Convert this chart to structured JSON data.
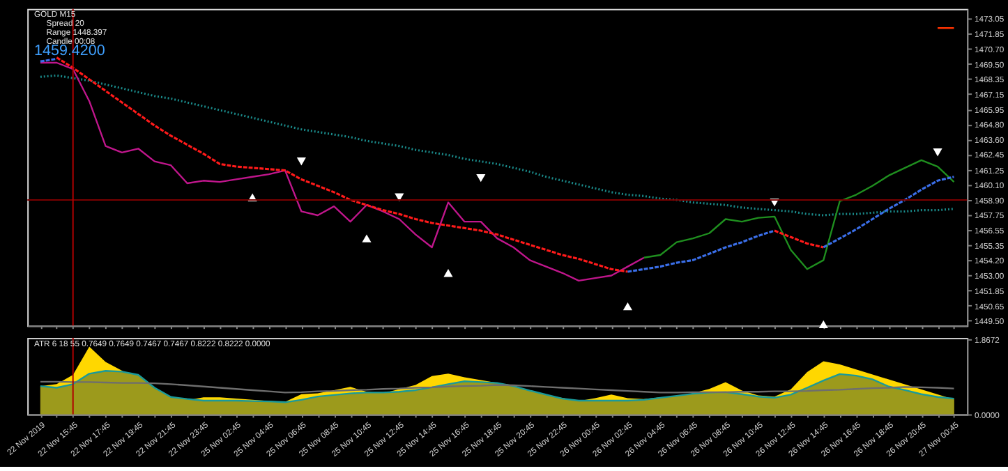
{
  "chart_data": [
    {
      "type": "line",
      "tick_labels": "y",
      "grid": false,
      "categories": [
        "22 Nov 2019",
        null,
        "22 Nov 15:45",
        null,
        "22 Nov 17:45",
        null,
        "22 Nov 19:45",
        null,
        "22 Nov 21:45",
        null,
        "22 Nov 23:45",
        null,
        "25 Nov 02:45",
        null,
        "25 Nov 04:45",
        null,
        "25 Nov 06:45",
        null,
        "25 Nov 08:45",
        null,
        "25 Nov 10:45",
        null,
        "25 Nov 12:45",
        null,
        "25 Nov 14:45",
        null,
        "25 Nov 16:45",
        null,
        "25 Nov 18:45",
        null,
        "25 Nov 20:45",
        null,
        "25 Nov 22:45",
        null,
        "26 Nov 00:45",
        null,
        "26 Nov 02:45",
        null,
        "26 Nov 04:45",
        null,
        "26 Nov 06:45",
        null,
        "26 Nov 08:45",
        null,
        "26 Nov 10:45",
        null,
        "26 Nov 12:45",
        null,
        "26 Nov 14:45",
        null,
        "26 Nov 16:45",
        null,
        "26 Nov 18:45",
        null,
        "26 Nov 20:45",
        null,
        "27 Nov 00:45"
      ],
      "ylim": [
        1449.1,
        1473.8
      ],
      "yticks": [
        {
          "value": 1449.5,
          "label": "1449.50"
        },
        {
          "value": 1450.65,
          "label": "1450.65"
        },
        {
          "value": 1451.85,
          "label": "1451.85"
        },
        {
          "value": 1453.0,
          "label": "1453.00"
        },
        {
          "value": 1454.2,
          "label": "1454.20"
        },
        {
          "value": 1455.35,
          "label": "1455.35"
        },
        {
          "value": 1456.55,
          "label": "1456.55"
        },
        {
          "value": 1457.75,
          "label": "1457.75"
        },
        {
          "value": 1458.9,
          "label": "1458.90"
        },
        {
          "value": 1460.1,
          "label": "1460.10"
        },
        {
          "value": 1461.25,
          "label": "1461.25"
        },
        {
          "value": 1462.45,
          "label": "1462.45"
        },
        {
          "value": 1463.6,
          "label": "1463.60"
        },
        {
          "value": 1464.8,
          "label": "1464.80"
        },
        {
          "value": 1465.95,
          "label": "1465.95"
        },
        {
          "value": 1467.15,
          "label": "1467.15"
        },
        {
          "value": 1468.35,
          "label": "1468.35"
        },
        {
          "value": 1469.5,
          "label": "1469.50"
        },
        {
          "value": 1470.7,
          "label": "1470.70"
        },
        {
          "value": 1471.85,
          "label": "1471.85"
        },
        {
          "value": 1473.05,
          "label": "1473.05"
        }
      ],
      "series": [
        {
          "color": "#1a8a8a",
          "line_style": "dotted",
          "values": [
            1468.5,
            1468.6,
            1468.4,
            1468.2,
            1467.9,
            1467.6,
            1467.3,
            1467.0,
            1466.8,
            1466.5,
            1466.2,
            1465.9,
            1465.6,
            1465.3,
            1465.0,
            1464.7,
            1464.4,
            1464.2,
            1464.0,
            1463.8,
            1463.5,
            1463.3,
            1463.1,
            1462.8,
            1462.6,
            1462.4,
            1462.1,
            1461.9,
            1461.7,
            1461.4,
            1461.1,
            1460.7,
            1460.4,
            1460.1,
            1459.8,
            1459.5,
            1459.3,
            1459.2,
            1459.0,
            1458.9,
            1458.7,
            1458.6,
            1458.5,
            1458.3,
            1458.2,
            1458.1,
            1458.0,
            1457.8,
            1457.7,
            1457.8,
            1457.8,
            1457.9,
            1458.0,
            1458.0,
            1458.1,
            1458.1,
            1458.2
          ]
        },
        {
          "color": "#c0168c",
          "values": [
            1469.6,
            1469.6,
            1469.1,
            1466.6,
            1463.1,
            1462.6,
            1462.9,
            1461.9,
            1461.6,
            1460.2,
            1460.4,
            1460.3,
            1460.5,
            1460.7,
            1460.9,
            1461.2,
            1458.0,
            1457.7,
            1458.4,
            1457.2,
            1458.5,
            1458.0,
            1457.4,
            1456.2,
            1455.2,
            1458.7,
            1457.2,
            1457.2,
            1455.9,
            1455.2,
            1454.2,
            1453.7,
            1453.2,
            1452.6,
            1452.8,
            1453.0,
            1453.7,
            1454.4,
            null,
            null,
            null,
            null,
            null,
            null,
            null,
            null,
            null,
            null,
            null,
            null,
            null,
            null,
            null,
            null,
            null,
            null,
            null
          ]
        },
        {
          "color": "#1f8f1f",
          "values": [
            null,
            null,
            null,
            null,
            null,
            null,
            null,
            null,
            null,
            null,
            null,
            null,
            null,
            null,
            null,
            null,
            null,
            null,
            null,
            null,
            null,
            null,
            null,
            null,
            null,
            null,
            null,
            null,
            null,
            null,
            null,
            null,
            null,
            null,
            null,
            null,
            null,
            1454.4,
            1454.6,
            1455.6,
            1455.9,
            1456.3,
            1457.4,
            1457.2,
            1457.5,
            1457.6,
            1455.0,
            1453.5,
            1454.2,
            1458.8,
            1459.3,
            1460.0,
            1460.8,
            1461.4,
            1462.0,
            1461.5,
            1460.3
          ]
        },
        {
          "color": "#3a6ee8",
          "line_style": "dashed",
          "values": [
            1469.7,
            1469.9,
            null,
            null,
            null,
            null,
            null,
            null,
            null,
            null,
            null,
            null,
            null,
            null,
            null,
            null,
            null,
            null,
            null,
            null,
            null,
            null,
            null,
            null,
            null,
            null,
            null,
            null,
            null,
            null,
            null,
            null,
            null,
            null,
            null,
            null,
            null,
            null,
            null,
            null,
            null,
            null,
            null,
            null,
            null,
            null,
            null,
            null,
            null,
            null,
            null,
            null,
            null,
            null,
            null,
            null,
            null
          ]
        },
        {
          "color": "#ff1a1a",
          "line_style": "dashed",
          "values": [
            null,
            1470.0,
            1469.2,
            1468.3,
            1467.4,
            1466.5,
            1465.6,
            1464.7,
            1463.9,
            1463.2,
            1462.5,
            1461.7,
            1461.5,
            1461.4,
            1461.3,
            1461.2,
            1460.5,
            1460.0,
            1459.5,
            1458.9,
            1458.5,
            1458.1,
            1457.8,
            1457.4,
            1457.1,
            1456.9,
            1456.7,
            1456.5,
            1456.2,
            1455.8,
            1455.4,
            1455.0,
            1454.6,
            1454.3,
            1453.9,
            1453.5,
            1453.3,
            null,
            null,
            null,
            null,
            null,
            null,
            null,
            null,
            null,
            null,
            null,
            null,
            null,
            null,
            null,
            null,
            null,
            null,
            null,
            null
          ]
        },
        {
          "color": "#3a6ee8",
          "line_style": "dashed",
          "values": [
            null,
            null,
            null,
            null,
            null,
            null,
            null,
            null,
            null,
            null,
            null,
            null,
            null,
            null,
            null,
            null,
            null,
            null,
            null,
            null,
            null,
            null,
            null,
            null,
            null,
            null,
            null,
            null,
            null,
            null,
            null,
            null,
            null,
            null,
            null,
            null,
            1453.3,
            1453.5,
            1453.7,
            1454.0,
            1454.2,
            1454.7,
            1455.2,
            1455.6,
            1456.1,
            1456.5,
            null,
            null,
            null,
            null,
            null,
            null,
            null,
            null,
            null,
            null,
            null
          ]
        },
        {
          "color": "#ff1a1a",
          "line_style": "dashed",
          "values": [
            null,
            null,
            null,
            null,
            null,
            null,
            null,
            null,
            null,
            null,
            null,
            null,
            null,
            null,
            null,
            null,
            null,
            null,
            null,
            null,
            null,
            null,
            null,
            null,
            null,
            null,
            null,
            null,
            null,
            null,
            null,
            null,
            null,
            null,
            null,
            null,
            null,
            null,
            null,
            null,
            null,
            null,
            null,
            null,
            null,
            1456.5,
            1456.0,
            1455.5,
            1455.2,
            null,
            null,
            null,
            null,
            null,
            null,
            null,
            null
          ]
        },
        {
          "color": "#3a6ee8",
          "line_style": "dashed",
          "values": [
            null,
            null,
            null,
            null,
            null,
            null,
            null,
            null,
            null,
            null,
            null,
            null,
            null,
            null,
            null,
            null,
            null,
            null,
            null,
            null,
            null,
            null,
            null,
            null,
            null,
            null,
            null,
            null,
            null,
            null,
            null,
            null,
            null,
            null,
            null,
            null,
            null,
            null,
            null,
            null,
            null,
            null,
            null,
            null,
            null,
            null,
            null,
            null,
            1455.2,
            1455.9,
            1456.6,
            1457.4,
            1458.2,
            1458.9,
            1459.7,
            1460.4,
            1460.7
          ]
        },
        {
          "color": "#ff3300",
          "values": [
            null,
            null,
            null,
            null,
            null,
            null,
            null,
            null,
            null,
            null,
            null,
            null,
            null,
            null,
            null,
            null,
            null,
            null,
            null,
            null,
            null,
            null,
            null,
            null,
            null,
            null,
            null,
            null,
            null,
            null,
            null,
            null,
            null,
            null,
            null,
            null,
            null,
            null,
            null,
            null,
            null,
            null,
            null,
            null,
            null,
            null,
            null,
            null,
            null,
            null,
            null,
            null,
            null,
            null,
            null,
            1472.3,
            1472.3
          ]
        },
        {
          "type": "scatter",
          "marker": "triangle",
          "color": "#ffffff",
          "values": [
            null,
            null,
            null,
            null,
            null,
            null,
            null,
            null,
            null,
            null,
            null,
            null,
            null,
            1459.1,
            null,
            null,
            null,
            null,
            null,
            null,
            1455.9,
            null,
            null,
            null,
            null,
            1453.2,
            null,
            null,
            null,
            null,
            null,
            null,
            null,
            null,
            null,
            null,
            1450.6,
            null,
            null,
            null,
            null,
            null,
            null,
            null,
            null,
            null,
            null,
            null,
            1449.2,
            null,
            null,
            null,
            null,
            null,
            null,
            null,
            null
          ]
        },
        {
          "type": "scatter",
          "marker": "triangle",
          "color": "#ffffff",
          "values": [
            null,
            null,
            null,
            null,
            null,
            null,
            null,
            null,
            null,
            null,
            null,
            null,
            null,
            null,
            null,
            null,
            1461.9,
            null,
            null,
            null,
            null,
            null,
            1459.1,
            null,
            null,
            null,
            null,
            1460.6,
            null,
            null,
            null,
            null,
            null,
            null,
            null,
            null,
            null,
            null,
            null,
            null,
            null,
            null,
            null,
            null,
            null,
            1458.7,
            null,
            null,
            null,
            null,
            null,
            null,
            null,
            null,
            null,
            1462.6,
            null
          ]
        }
      ],
      "ref_lines": [
        {
          "axis": "y",
          "value": 1458.9,
          "color": "#7a0000"
        },
        {
          "axis": "x",
          "value": "22 Nov 15:45",
          "color": "#b00000"
        }
      ],
      "annotations": [
        "GOLD   M15",
        "Spread   20",
        "Range   1448.397",
        "Candle   00:08",
        "1459.4200"
      ]
    },
    {
      "type": "area",
      "grid": false,
      "categories": [
        "22 Nov 2019",
        null,
        "22 Nov 15:45",
        null,
        "22 Nov 17:45",
        null,
        "22 Nov 19:45",
        null,
        "22 Nov 21:45",
        null,
        "22 Nov 23:45",
        null,
        "25 Nov 02:45",
        null,
        "25 Nov 04:45",
        null,
        "25 Nov 06:45",
        null,
        "25 Nov 08:45",
        null,
        "25 Nov 10:45",
        null,
        "25 Nov 12:45",
        null,
        "25 Nov 14:45",
        null,
        "25 Nov 16:45",
        null,
        "25 Nov 18:45",
        null,
        "25 Nov 20:45",
        null,
        "25 Nov 22:45",
        null,
        "26 Nov 00:45",
        null,
        "26 Nov 02:45",
        null,
        "26 Nov 04:45",
        null,
        "26 Nov 06:45",
        null,
        "26 Nov 08:45",
        null,
        "26 Nov 10:45",
        null,
        "26 Nov 12:45",
        null,
        "26 Nov 14:45",
        null,
        "26 Nov 16:45",
        null,
        "26 Nov 18:45",
        null,
        "26 Nov 20:45",
        null,
        "27 Nov 00:45"
      ],
      "ylim": [
        0,
        1.9
      ],
      "yticks": [
        {
          "value": 1.8672,
          "label": "1.8672"
        },
        {
          "value": 0,
          "label": "0.0000"
        }
      ],
      "series": [
        {
          "color": "#ffd700",
          "values": [
            0.7,
            0.75,
            0.98,
            1.68,
            1.3,
            null,
            null,
            null,
            0.44,
            0.35,
            0.42,
            0.42,
            0.39,
            0.36,
            0.33,
            0.31,
            0.5,
            0.52,
            0.6,
            0.68,
            0.56,
            0.52,
            null,
            0.73,
            0.95,
            1.01,
            0.92,
            null,
            0.78,
            0.72,
            0.56,
            null,
            null,
            0.33,
            0.4,
            0.49,
            0.4,
            0.38,
            0.42,
            0.42,
            null,
            0.63,
            0.8,
            0.59,
            0.47,
            0.44,
            0.62,
            1.05,
            1.32,
            1.24,
            null,
            null,
            null,
            null,
            null,
            null,
            0.37
          ]
        },
        {
          "color": "#9c9a1c",
          "values": [
            0.7,
            0.66,
            0.75,
            1.01,
            1.08,
            1.06,
            0.98,
            0.66,
            0.43,
            0.38,
            0.34,
            0.34,
            0.34,
            0.33,
            0.32,
            0.3,
            0.36,
            0.44,
            0.48,
            0.52,
            0.54,
            0.54,
            0.56,
            0.6,
            0.67,
            0.75,
            0.82,
            0.8,
            0.78,
            0.7,
            0.59,
            0.49,
            0.39,
            0.34,
            0.34,
            0.34,
            0.34,
            0.36,
            0.41,
            0.46,
            0.51,
            0.54,
            0.55,
            0.5,
            0.44,
            0.41,
            0.49,
            0.66,
            0.84,
            1.0,
            0.96,
            0.87,
            0.69,
            0.6,
            0.5,
            0.43,
            0.39
          ]
        },
        {
          "type": "line",
          "color": "#1a9a9a",
          "values": [
            0.7,
            0.66,
            0.75,
            1.01,
            1.08,
            1.06,
            0.98,
            0.66,
            0.43,
            0.38,
            0.34,
            0.34,
            0.34,
            0.33,
            0.32,
            0.3,
            0.36,
            0.44,
            0.48,
            0.52,
            0.54,
            0.54,
            0.56,
            0.6,
            0.67,
            0.75,
            0.82,
            0.8,
            0.78,
            0.7,
            0.59,
            0.49,
            0.39,
            0.34,
            0.34,
            0.34,
            0.34,
            0.36,
            0.41,
            0.46,
            0.51,
            0.54,
            0.55,
            0.5,
            0.44,
            0.41,
            0.49,
            0.66,
            0.84,
            1.0,
            0.96,
            0.87,
            0.69,
            0.6,
            0.5,
            0.43,
            0.39
          ]
        },
        {
          "type": "line",
          "color": "#6e6e6e",
          "values": [
            0.81,
            0.81,
            0.8,
            0.8,
            0.79,
            0.78,
            0.78,
            0.77,
            0.75,
            0.72,
            0.69,
            0.66,
            0.63,
            0.6,
            0.57,
            0.54,
            0.55,
            0.57,
            0.58,
            0.6,
            0.61,
            0.63,
            0.64,
            0.66,
            0.67,
            0.69,
            0.7,
            0.71,
            0.73,
            0.72,
            0.7,
            0.68,
            0.66,
            0.64,
            0.62,
            0.6,
            0.58,
            0.56,
            0.54,
            0.54,
            0.55,
            0.55,
            0.55,
            0.56,
            0.56,
            0.57,
            0.57,
            0.58,
            0.6,
            0.61,
            0.63,
            0.65,
            0.66,
            0.68,
            0.67,
            0.66,
            0.64
          ]
        }
      ],
      "ref_lines": [
        {
          "axis": "x",
          "value": "22 Nov 15:45",
          "color": "#b00000"
        }
      ],
      "annotations": [
        "ATR 6 18 55 0.7649 0.7649 0.7467 0.7467 0.8222 0.8222 0.0000"
      ]
    }
  ]
}
